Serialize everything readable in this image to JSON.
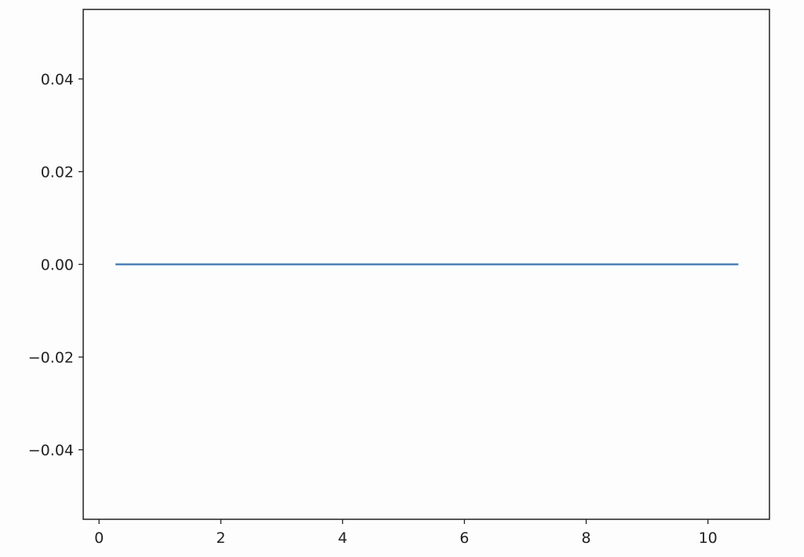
{
  "chart_data": {
    "type": "line",
    "title": "",
    "xlabel": "",
    "ylabel": "",
    "xlim": [
      -0.26,
      11.01
    ],
    "ylim": [
      -0.055,
      0.055
    ],
    "x_ticks": [
      0,
      2,
      4,
      6,
      8,
      10
    ],
    "x_tick_labels": [
      "0",
      "2",
      "4",
      "6",
      "8",
      "10"
    ],
    "y_ticks": [
      0.04,
      0.02,
      0.0,
      -0.02,
      -0.04
    ],
    "y_tick_labels": [
      "0.04",
      "0.02",
      "0.00",
      "−0.02",
      "−0.04"
    ],
    "grid": false,
    "series": [
      {
        "x": [
          0.27,
          10.5
        ],
        "y": [
          0,
          0
        ],
        "color": "#3a75b0"
      }
    ]
  }
}
